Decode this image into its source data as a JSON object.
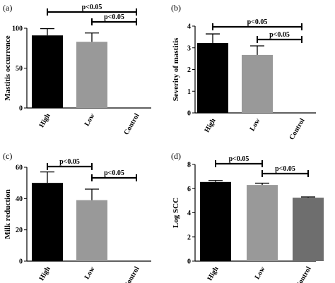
{
  "chart_data": [
    {
      "panel_label": "(a)",
      "type": "bar",
      "title": "",
      "xlabel": "",
      "ylabel": "Mastitis occurrence",
      "categories": [
        "High",
        "Low",
        "Control"
      ],
      "values": [
        91,
        83,
        0
      ],
      "errors": [
        8.5,
        11,
        0
      ],
      "bar_colors": [
        "#000000",
        "#999999",
        "#6e6e6e"
      ],
      "ylim": [
        0,
        100
      ],
      "yticks": [
        "0",
        "50",
        "100"
      ],
      "grid": false,
      "significance": [
        {
          "from": 0,
          "to": 2,
          "label": "p<0.05"
        },
        {
          "from": 1,
          "to": 2,
          "label": "p<0.05"
        }
      ]
    },
    {
      "panel_label": "(b)",
      "type": "bar",
      "title": "",
      "xlabel": "",
      "ylabel": "Severity of mastitis",
      "categories": [
        "High",
        "Low",
        "Control"
      ],
      "values": [
        3.22,
        2.67,
        0
      ],
      "errors": [
        0.42,
        0.42,
        0
      ],
      "bar_colors": [
        "#000000",
        "#999999",
        "#6e6e6e"
      ],
      "ylim": [
        0,
        4
      ],
      "yticks": [
        "0",
        "1",
        "2",
        "3",
        "4"
      ],
      "grid": false,
      "significance": [
        {
          "from": 0,
          "to": 2,
          "label": "p<0.05"
        },
        {
          "from": 1,
          "to": 2,
          "label": "p<0.05"
        }
      ]
    },
    {
      "panel_label": "(c)",
      "type": "bar",
      "title": "",
      "xlabel": "",
      "ylabel": "Milk reduction",
      "categories": [
        "High",
        "Low",
        "Control"
      ],
      "values": [
        50,
        39,
        0
      ],
      "errors": [
        7,
        7,
        0
      ],
      "bar_colors": [
        "#000000",
        "#999999",
        "#6e6e6e"
      ],
      "ylim": [
        0,
        60
      ],
      "yticks": [
        "0",
        "20",
        "40",
        "60"
      ],
      "grid": false,
      "significance": [
        {
          "from": 0,
          "to": 1,
          "label": "p<0.05"
        },
        {
          "from": 1,
          "to": 2,
          "label": "p<0.05"
        }
      ]
    },
    {
      "panel_label": "(d)",
      "type": "bar",
      "title": "",
      "xlabel": "",
      "ylabel": "Log SCC",
      "categories": [
        "High",
        "Low",
        "Control"
      ],
      "values": [
        6.55,
        6.3,
        5.25
      ],
      "errors": [
        0.12,
        0.15,
        0.06
      ],
      "bar_colors": [
        "#000000",
        "#999999",
        "#6e6e6e"
      ],
      "ylim": [
        0,
        8
      ],
      "yticks": [
        "0",
        "2",
        "4",
        "6",
        "8"
      ],
      "grid": false,
      "significance": [
        {
          "from": 0,
          "to": 1,
          "label": "p<0.05"
        },
        {
          "from": 1,
          "to": 2,
          "label": "p<0.05"
        }
      ]
    }
  ]
}
